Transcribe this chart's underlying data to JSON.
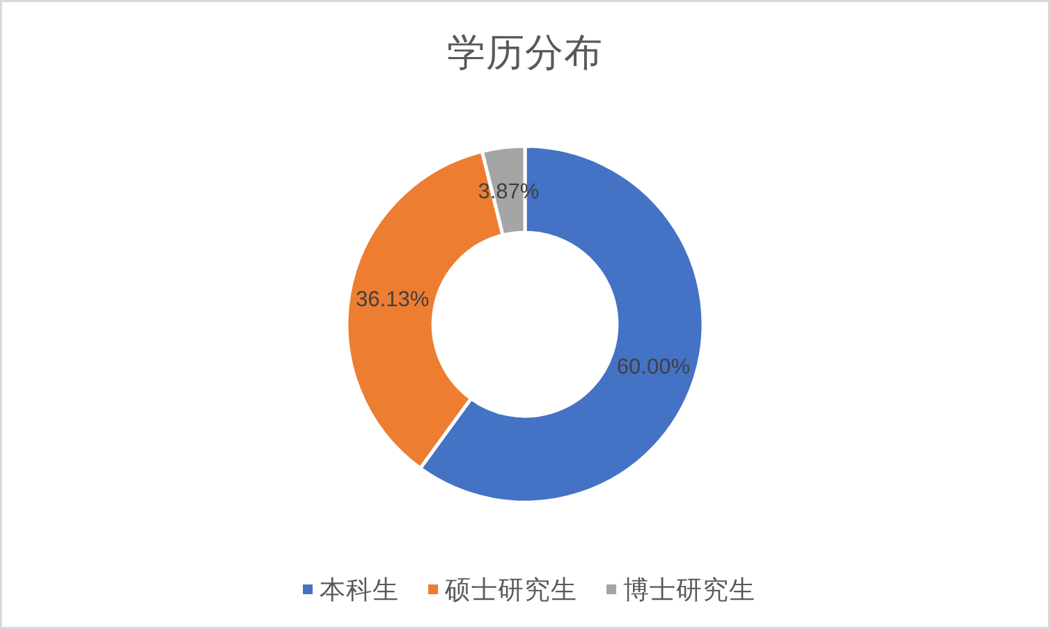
{
  "chart_data": {
    "type": "donut",
    "title": "学历分布",
    "categories": [
      "本科生",
      "硕士研究生",
      "博士研究生"
    ],
    "values": [
      60.0,
      36.13,
      3.87
    ],
    "colors": [
      "#4472c4",
      "#ed7d31",
      "#a5a5a5"
    ],
    "value_labels": [
      "60.00%",
      "36.13%",
      "3.87%"
    ],
    "legend": "bottom"
  }
}
